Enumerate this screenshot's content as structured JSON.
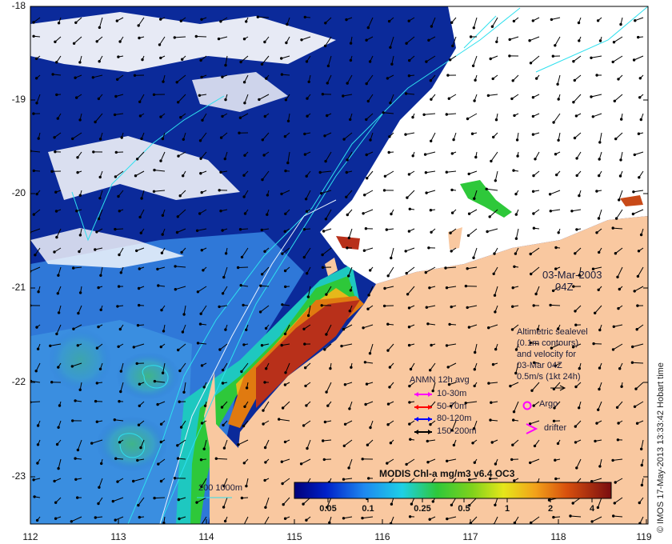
{
  "date_label": "03-Mar-2003",
  "time_label": "04Z",
  "y_ticks": [
    "-18",
    "-19",
    "-20",
    "-21",
    "-22",
    "-23"
  ],
  "x_ticks": [
    "112",
    "113",
    "114",
    "115",
    "116",
    "117",
    "118",
    "119"
  ],
  "altimetry": {
    "line1": "Altimetric sealevel",
    "line2": "(0.1m contours)",
    "line3": "and velocity for",
    "line4": "03-Mar 04Z",
    "line5": "0.5m/s (1kt 24h)"
  },
  "anmn": {
    "title": "ANMN 12h avg",
    "rows": [
      {
        "label": "10-30m",
        "color": "#ff00ff"
      },
      {
        "label": "50-70m",
        "color": "#ff0000"
      },
      {
        "label": "80-120m",
        "color": "#0000ff"
      },
      {
        "label": "150-200m",
        "color": "#000000"
      }
    ]
  },
  "argo_label": "Argo",
  "drifter_label": "drifter",
  "isobath_label": "200  1000m",
  "colorbar": {
    "title": "MODIS Chl-a mg/m3 v6.4 OC3",
    "ticks": [
      "0.05",
      "0.1",
      "0.25",
      "0.5",
      "1",
      "2",
      "4"
    ]
  },
  "credit": "© IMOS 17-May-2013 13:33:42 Hobart time",
  "colors": {
    "land": "#f9c8a0",
    "cloud": "#ffffff",
    "deep_ocean": "#0b1f8c",
    "mid_ocean": "#2f78d8",
    "shelf_low": "#5ec8c8",
    "shelf_mid": "#3bbf3b",
    "shelf_high": "#e07a10",
    "shelf_max": "#9e1a10",
    "contour": "#2ee0ee",
    "argo": "#ff00ff"
  }
}
